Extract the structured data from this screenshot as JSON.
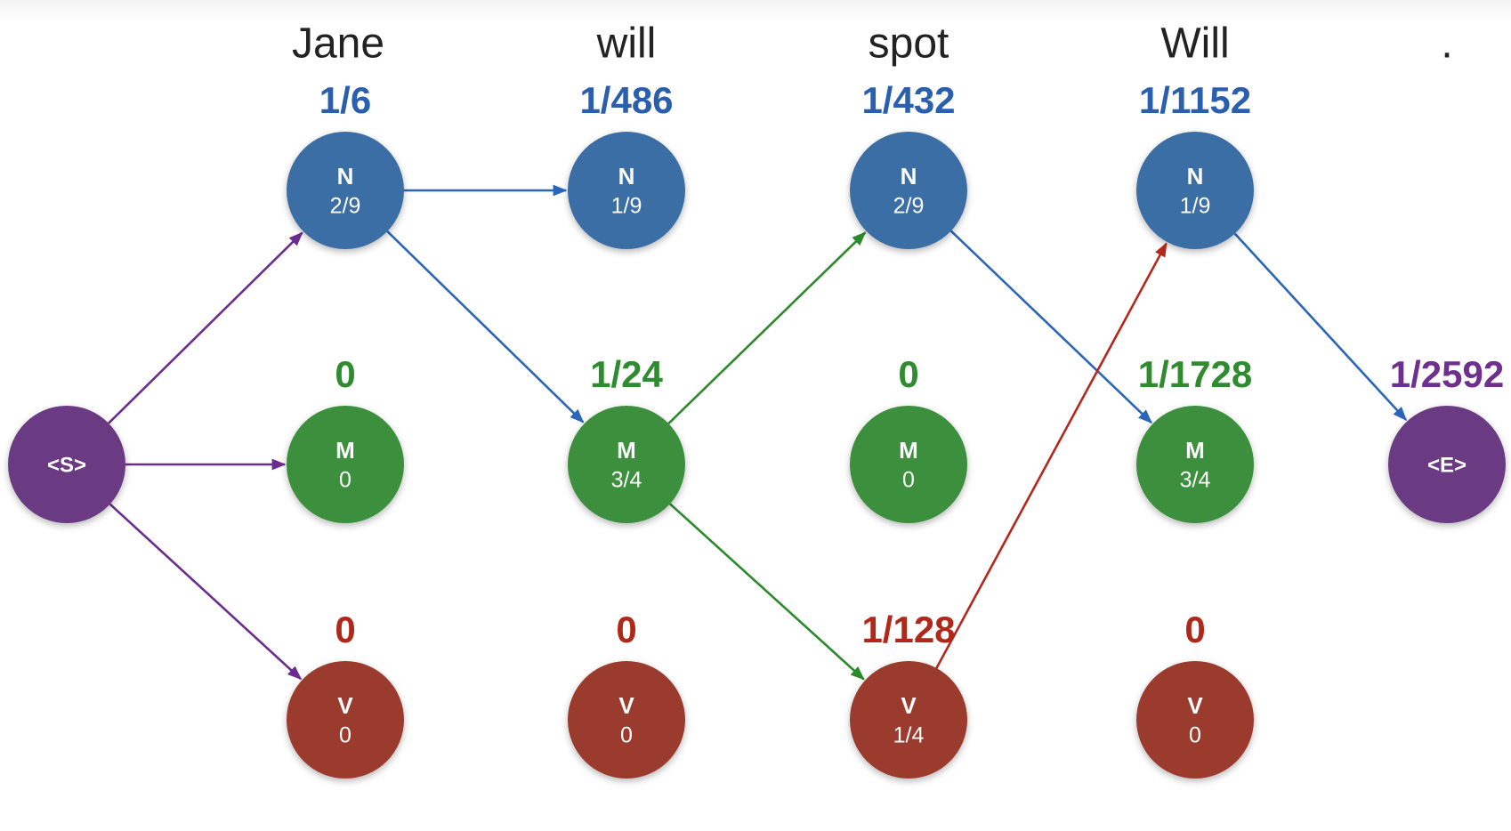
{
  "colors": {
    "N": "#3a6ea5",
    "M": "#3a8f3e",
    "V": "#9b3b2e",
    "S": "#6b3a82",
    "E": "#6b3a82",
    "score_N": "#2a5fae",
    "score_M": "#2e8b2e",
    "score_V": "#b0281a",
    "score_E": "#6f2f8f",
    "arrow_purple": "#6a2c8e",
    "arrow_blue": "#2a66b8",
    "arrow_green": "#2b8a2b",
    "arrow_red": "#b5271c"
  },
  "words": [
    "Jane",
    "will",
    "spot",
    "Will",
    "."
  ],
  "start": {
    "label": "<S>"
  },
  "end": {
    "label": "<E>",
    "score": "1/2592"
  },
  "columns": [
    {
      "N": {
        "tag": "N",
        "emission": "2/9",
        "score": "1/6"
      },
      "M": {
        "tag": "M",
        "emission": "0",
        "score": "0"
      },
      "V": {
        "tag": "V",
        "emission": "0",
        "score": "0"
      }
    },
    {
      "N": {
        "tag": "N",
        "emission": "1/9",
        "score": "1/486"
      },
      "M": {
        "tag": "M",
        "emission": "3/4",
        "score": "1/24"
      },
      "V": {
        "tag": "V",
        "emission": "0",
        "score": "0"
      }
    },
    {
      "N": {
        "tag": "N",
        "emission": "2/9",
        "score": "1/432"
      },
      "M": {
        "tag": "M",
        "emission": "0",
        "score": "0"
      },
      "V": {
        "tag": "V",
        "emission": "1/4",
        "score": "1/128"
      }
    },
    {
      "N": {
        "tag": "N",
        "emission": "1/9",
        "score": "1/1152"
      },
      "M": {
        "tag": "M",
        "emission": "3/4",
        "score": "1/1728"
      },
      "V": {
        "tag": "V",
        "emission": "0",
        "score": "0"
      }
    }
  ],
  "edges": [
    {
      "from": "S",
      "to": "0N",
      "color": "arrow_purple"
    },
    {
      "from": "S",
      "to": "0M",
      "color": "arrow_purple"
    },
    {
      "from": "S",
      "to": "0V",
      "color": "arrow_purple"
    },
    {
      "from": "0N",
      "to": "1N",
      "color": "arrow_blue"
    },
    {
      "from": "0N",
      "to": "1M",
      "color": "arrow_blue"
    },
    {
      "from": "1M",
      "to": "2N",
      "color": "arrow_green"
    },
    {
      "from": "1M",
      "to": "2V",
      "color": "arrow_green"
    },
    {
      "from": "2N",
      "to": "3M",
      "color": "arrow_blue"
    },
    {
      "from": "2V",
      "to": "3N",
      "color": "arrow_red"
    },
    {
      "from": "3N",
      "to": "E",
      "color": "arrow_blue"
    }
  ]
}
